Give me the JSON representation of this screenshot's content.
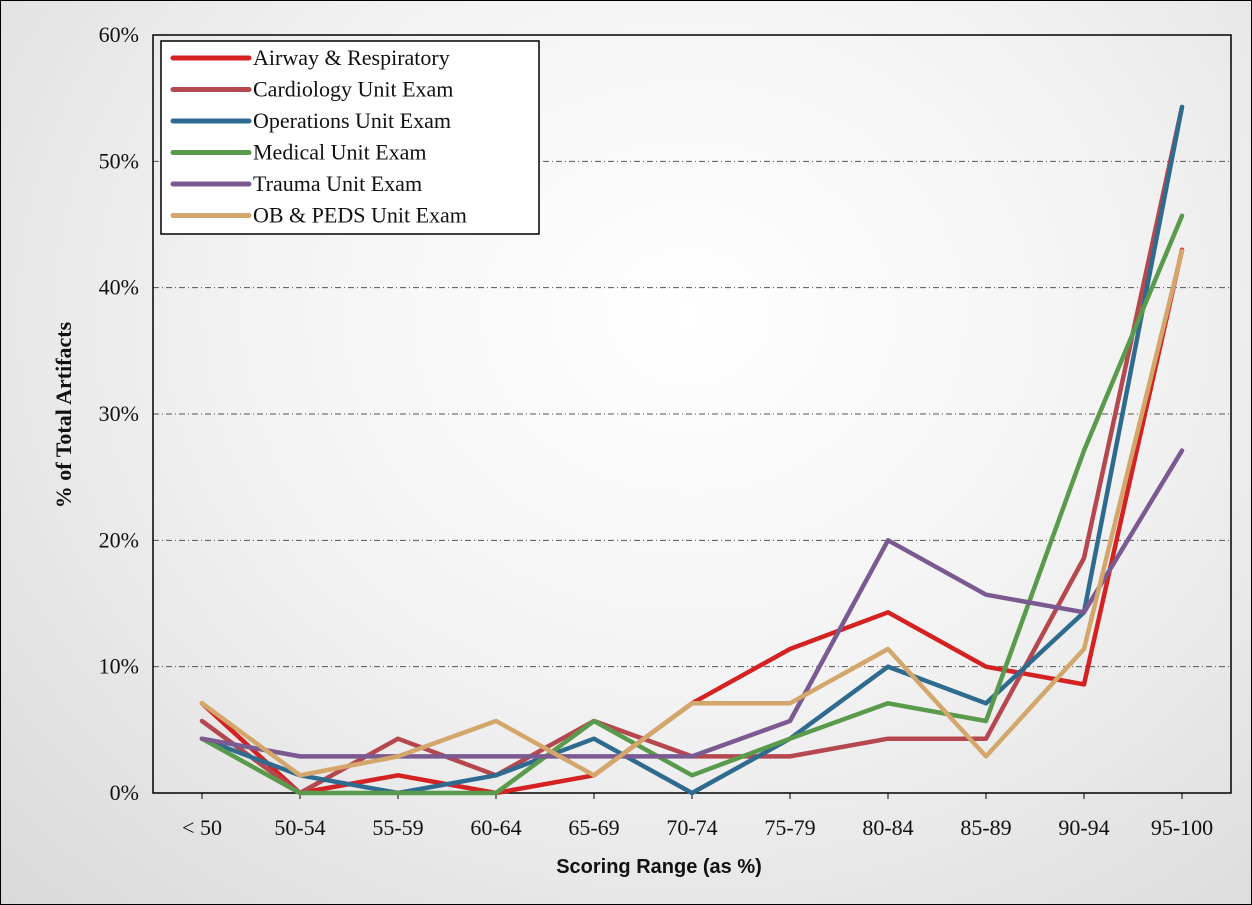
{
  "chart_data": {
    "type": "line",
    "xlabel": "Scoring Range (as %)",
    "ylabel": "% of Total Artifacts",
    "categories": [
      "< 50",
      "50-54",
      "55-59",
      "60-64",
      "65-69",
      "70-74",
      "75-79",
      "80-84",
      "85-89",
      "90-94",
      "95-100"
    ],
    "ylim": [
      0,
      60
    ],
    "yticks": [
      0,
      10,
      20,
      30,
      40,
      50,
      60
    ],
    "ytick_labels": [
      "0%",
      "10%",
      "20%",
      "30%",
      "40%",
      "50%",
      "60%"
    ],
    "grid": "horizontal dash-dot",
    "legend_position": "top-left",
    "series": [
      {
        "name": "Airway & Respiratory",
        "color": "#d42222",
        "values": [
          7.1,
          0,
          1.4,
          0,
          1.4,
          7.1,
          11.4,
          14.3,
          10.0,
          8.6,
          43.0
        ]
      },
      {
        "name": "Cardiology Unit Exam",
        "color": "#b5474f",
        "values": [
          5.7,
          0,
          4.3,
          1.4,
          5.7,
          2.9,
          2.9,
          4.3,
          4.3,
          18.6,
          54.3
        ]
      },
      {
        "name": "Operations Unit Exam",
        "color": "#2e6b8f",
        "values": [
          4.3,
          1.4,
          0,
          1.4,
          4.3,
          0,
          4.3,
          10.0,
          7.1,
          14.3,
          54.3
        ]
      },
      {
        "name": "Medical Unit Exam",
        "color": "#5a9a4c",
        "values": [
          4.3,
          0,
          0,
          0,
          5.7,
          1.4,
          4.3,
          7.1,
          5.7,
          27.1,
          45.7
        ]
      },
      {
        "name": "Trauma Unit Exam",
        "color": "#7a5a91",
        "values": [
          4.3,
          2.9,
          2.9,
          2.9,
          2.9,
          2.9,
          5.7,
          20.0,
          15.7,
          14.3,
          27.1
        ]
      },
      {
        "name": "OB & PEDS Unit Exam",
        "color": "#d3a76b",
        "values": [
          7.1,
          1.4,
          2.9,
          5.7,
          1.4,
          7.1,
          7.1,
          11.4,
          2.9,
          11.4,
          42.9
        ]
      }
    ]
  }
}
